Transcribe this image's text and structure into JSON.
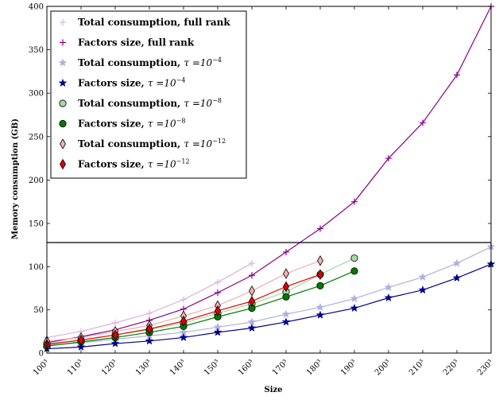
{
  "chart_data": {
    "type": "line",
    "title": "",
    "xlabel": "Size",
    "ylabel": "Memory consumption (GB)",
    "x_ticks": [
      "100³",
      "110³",
      "120³",
      "130³",
      "140³",
      "150³",
      "160³",
      "170³",
      "180³",
      "190³",
      "200³",
      "210³",
      "220³",
      "230³"
    ],
    "x_range": [
      100,
      230
    ],
    "axis_break": {
      "type": "broken y-axis",
      "lower_ylim": [
        0,
        128
      ],
      "upper_ylim": [
        128,
        400
      ]
    },
    "lower_y_ticks": [
      "0",
      "50",
      "100"
    ],
    "upper_y_ticks": [
      "150",
      "200",
      "250",
      "300",
      "350",
      "400"
    ],
    "legend_position": "upper-left",
    "series": [
      {
        "name": "Total consumption, full rank",
        "name_main": "Total consumption, full rank",
        "name_var": "",
        "name_exp": "",
        "color": "#e0b0e0",
        "marker": "plus",
        "x": [
          100,
          110,
          120,
          130,
          140,
          150,
          160
        ],
        "y": [
          18,
          25,
          35,
          46,
          62,
          82,
          104
        ]
      },
      {
        "name": "Factors size, full rank",
        "name_main": "Factors size, full rank",
        "name_var": "",
        "name_exp": "",
        "color": "#8b008b",
        "marker": "plus",
        "x": [
          100,
          110,
          120,
          130,
          140,
          150,
          160,
          170,
          180,
          190,
          200,
          210,
          220,
          230
        ],
        "y": [
          12,
          19,
          27,
          38,
          51,
          70,
          90,
          117,
          144,
          175,
          225,
          266,
          321,
          400
        ]
      },
      {
        "name": "Total consumption, τ =10^-4",
        "name_main": "Total consumption, ",
        "name_var": "τ =10",
        "name_exp": "−4",
        "color": "#b0b0e0",
        "marker": "star",
        "x": [
          100,
          110,
          120,
          130,
          140,
          150,
          160,
          170,
          180,
          190,
          200,
          210,
          220,
          230
        ],
        "y": [
          9,
          12,
          16,
          20,
          24,
          30,
          36,
          45,
          53,
          63,
          76,
          88,
          104,
          123
        ]
      },
      {
        "name": "Factors size, τ =10^-4",
        "name_main": "Factors size, ",
        "name_var": "τ =10",
        "name_exp": "−4",
        "color": "#00008b",
        "marker": "star",
        "x": [
          100,
          110,
          120,
          130,
          140,
          150,
          160,
          170,
          180,
          190,
          200,
          210,
          220,
          230
        ],
        "y": [
          5,
          7,
          11,
          14,
          18,
          24,
          29,
          36,
          44,
          52,
          64,
          73,
          87,
          103
        ]
      },
      {
        "name": "Total consumption, τ =10^-8",
        "name_main": "Total consumption, ",
        "name_var": "τ =10",
        "name_exp": "−8",
        "color": "#a8d8a8",
        "marker": "circle",
        "x": [
          100,
          110,
          120,
          130,
          140,
          150,
          160,
          170,
          180,
          190
        ],
        "y": [
          11,
          15,
          21,
          27,
          35,
          46,
          57,
          71,
          91,
          110
        ]
      },
      {
        "name": "Factors size, τ =10^-8",
        "name_main": "Factors size, ",
        "name_var": "τ =10",
        "name_exp": "−8",
        "color": "#007a00",
        "marker": "circle",
        "x": [
          100,
          110,
          120,
          130,
          140,
          150,
          160,
          170,
          180,
          190
        ],
        "y": [
          8,
          13,
          18,
          24,
          31,
          42,
          52,
          65,
          78,
          95
        ]
      },
      {
        "name": "Total consumption, τ =10^-12",
        "name_main": "Total consumption, ",
        "name_var": "τ =10",
        "name_exp": "−12",
        "color": "#f0b0b0",
        "marker": "diamond",
        "x": [
          100,
          110,
          120,
          130,
          140,
          150,
          160,
          170,
          180
        ],
        "y": [
          14,
          18,
          25,
          32,
          43,
          55,
          72,
          92,
          107
        ]
      },
      {
        "name": "Factors size, τ =10^-12",
        "name_main": "Factors size, ",
        "name_var": "τ =10",
        "name_exp": "−12",
        "color": "#e00000",
        "marker": "diamond",
        "x": [
          100,
          110,
          120,
          130,
          140,
          150,
          160,
          170,
          180
        ],
        "y": [
          10,
          15,
          21,
          28,
          37,
          49,
          60,
          77,
          91
        ]
      }
    ]
  }
}
